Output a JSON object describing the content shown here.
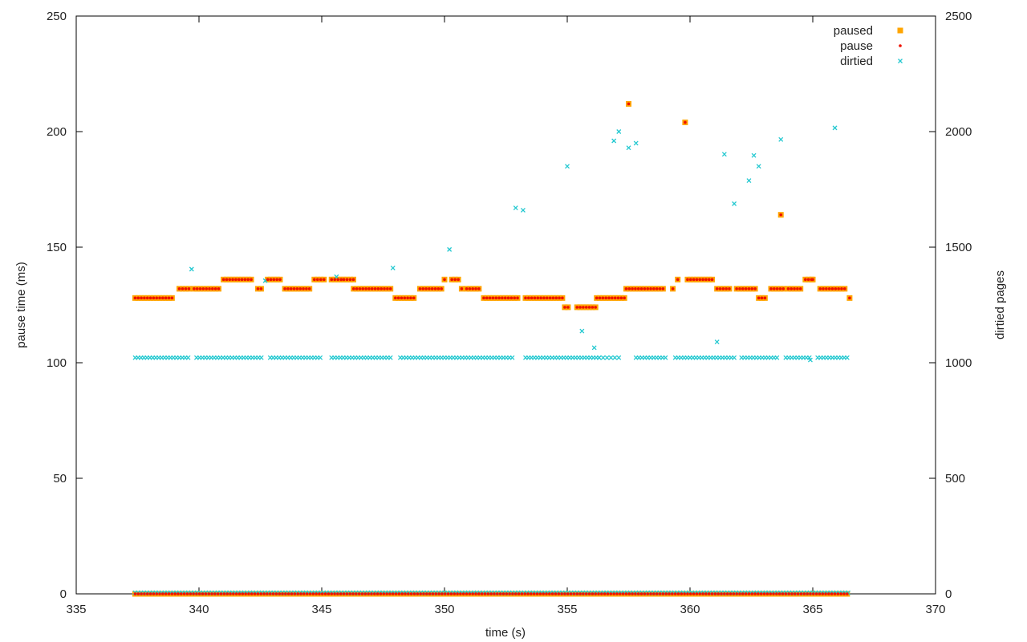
{
  "chart_data": {
    "type": "scatter",
    "title": "",
    "xlabel": "time (s)",
    "ylabel": "pause time (ms)",
    "y2label": "dirtied pages",
    "xlim": [
      335,
      370
    ],
    "ylim": [
      0,
      250
    ],
    "y2lim": [
      0,
      2500
    ],
    "xticks": [
      "335",
      "340",
      "345",
      "350",
      "355",
      "360",
      "365",
      "370"
    ],
    "yticks": [
      "0",
      "50",
      "100",
      "150",
      "200",
      "250"
    ],
    "y2ticks": [
      "0",
      "500",
      "1000",
      "1500",
      "2000",
      "2500"
    ],
    "grid": false,
    "legend_position": "top-right",
    "colors": {
      "paused": "#ffa500",
      "pause": "#ee1100",
      "dirtied": "#22c8d0",
      "axis": "#000000"
    },
    "series": [
      {
        "name": "paused",
        "marker": "square",
        "axis": "y",
        "segments": [
          {
            "x0": 337.4,
            "x1": 339.0,
            "step": 0.125,
            "y": 128
          },
          {
            "x0": 339.2,
            "x1": 339.6,
            "step": 0.13,
            "y": 132
          },
          {
            "x0": 339.8,
            "x1": 340.9,
            "step": 0.125,
            "y": 132
          },
          {
            "x0": 341.0,
            "x1": 342.2,
            "step": 0.125,
            "y": 136
          },
          {
            "x0": 342.4,
            "x1": 342.6,
            "step": 0.13,
            "y": 132
          },
          {
            "x0": 342.8,
            "x1": 343.3,
            "step": 0.125,
            "y": 136
          },
          {
            "x0": 343.5,
            "x1": 344.6,
            "step": 0.125,
            "y": 132
          },
          {
            "x0": 344.7,
            "x1": 345.1,
            "step": 0.13,
            "y": 136
          },
          {
            "x0": 345.4,
            "x1": 345.8,
            "step": 0.13,
            "y": 136
          },
          {
            "x0": 345.9,
            "x1": 346.3,
            "step": 0.13,
            "y": 136
          },
          {
            "x0": 346.3,
            "x1": 347.8,
            "step": 0.125,
            "y": 132
          },
          {
            "x0": 348.0,
            "x1": 348.8,
            "step": 0.125,
            "y": 128
          },
          {
            "x0": 349.0,
            "x1": 349.9,
            "step": 0.125,
            "y": 132
          },
          {
            "x0": 350.0,
            "x1": 350.0,
            "step": 0.13,
            "y": 136
          },
          {
            "x0": 350.3,
            "x1": 350.6,
            "step": 0.13,
            "y": 136
          },
          {
            "x0": 350.7,
            "x1": 350.7,
            "step": 0.13,
            "y": 132
          },
          {
            "x0": 350.9,
            "x1": 351.5,
            "step": 0.125,
            "y": 132
          },
          {
            "x0": 351.6,
            "x1": 353.0,
            "step": 0.125,
            "y": 128
          },
          {
            "x0": 353.3,
            "x1": 354.8,
            "step": 0.125,
            "y": 128
          },
          {
            "x0": 354.9,
            "x1": 355.1,
            "step": 0.13,
            "y": 124
          },
          {
            "x0": 355.4,
            "x1": 356.2,
            "step": 0.125,
            "y": 124
          },
          {
            "x0": 356.2,
            "x1": 357.4,
            "step": 0.125,
            "y": 128
          },
          {
            "x0": 357.4,
            "x1": 358.9,
            "step": 0.125,
            "y": 132
          },
          {
            "x0": 359.3,
            "x1": 359.3,
            "step": 0.13,
            "y": 132
          },
          {
            "x0": 359.5,
            "x1": 359.5,
            "step": 0.13,
            "y": 136
          },
          {
            "x0": 359.9,
            "x1": 361.0,
            "step": 0.125,
            "y": 136
          },
          {
            "x0": 361.1,
            "x1": 361.6,
            "step": 0.125,
            "y": 132
          },
          {
            "x0": 361.9,
            "x1": 362.7,
            "step": 0.125,
            "y": 132
          },
          {
            "x0": 362.8,
            "x1": 363.1,
            "step": 0.125,
            "y": 128
          },
          {
            "x0": 363.3,
            "x1": 363.8,
            "step": 0.125,
            "y": 132
          },
          {
            "x0": 364.0,
            "x1": 364.6,
            "step": 0.125,
            "y": 132
          },
          {
            "x0": 364.7,
            "x1": 365.0,
            "step": 0.125,
            "y": 136
          },
          {
            "x0": 365.0,
            "x1": 365.0,
            "step": 0.13,
            "y": 136
          },
          {
            "x0": 365.3,
            "x1": 366.4,
            "step": 0.125,
            "y": 132
          },
          {
            "x0": 366.5,
            "x1": 366.5,
            "step": 0.13,
            "y": 128
          },
          {
            "x0": 337.4,
            "x1": 366.5,
            "step": 0.125,
            "y": 0
          }
        ],
        "points": [
          [
            357.5,
            212
          ],
          [
            359.8,
            204
          ],
          [
            363.7,
            164
          ]
        ]
      },
      {
        "name": "pause",
        "marker": "circle",
        "axis": "y",
        "same_as": "paused"
      },
      {
        "name": "dirtied",
        "marker": "x",
        "axis": "y2",
        "segments": [
          {
            "x0": 337.4,
            "x1": 339.6,
            "step": 0.12,
            "y": 1022
          },
          {
            "x0": 339.9,
            "x1": 342.6,
            "step": 0.12,
            "y": 1022
          },
          {
            "x0": 342.9,
            "x1": 345.0,
            "step": 0.12,
            "y": 1022
          },
          {
            "x0": 345.4,
            "x1": 347.9,
            "step": 0.12,
            "y": 1022
          },
          {
            "x0": 348.2,
            "x1": 352.8,
            "step": 0.12,
            "y": 1022
          },
          {
            "x0": 353.3,
            "x1": 356.3,
            "step": 0.12,
            "y": 1022
          },
          {
            "x0": 356.3,
            "x1": 357.1,
            "step": 0.16,
            "y": 1022
          },
          {
            "x0": 357.8,
            "x1": 359.1,
            "step": 0.12,
            "y": 1022
          },
          {
            "x0": 359.4,
            "x1": 361.9,
            "step": 0.12,
            "y": 1022
          },
          {
            "x0": 362.1,
            "x1": 363.6,
            "step": 0.12,
            "y": 1022
          },
          {
            "x0": 363.9,
            "x1": 364.9,
            "step": 0.12,
            "y": 1022
          },
          {
            "x0": 365.2,
            "x1": 366.5,
            "step": 0.12,
            "y": 1022
          },
          {
            "x0": 337.4,
            "x1": 366.5,
            "step": 0.12,
            "y": 5
          }
        ],
        "points": [
          [
            339.7,
            1405
          ],
          [
            342.7,
            1355
          ],
          [
            345.6,
            1372
          ],
          [
            347.9,
            1410
          ],
          [
            350.2,
            1490
          ],
          [
            352.9,
            1670
          ],
          [
            353.2,
            1660
          ],
          [
            355.0,
            1850
          ],
          [
            355.6,
            1137
          ],
          [
            356.1,
            1065
          ],
          [
            356.9,
            1960
          ],
          [
            357.1,
            2000
          ],
          [
            357.5,
            1930
          ],
          [
            357.8,
            1950
          ],
          [
            361.1,
            1090
          ],
          [
            361.4,
            1902
          ],
          [
            361.8,
            1688
          ],
          [
            362.4,
            1788
          ],
          [
            362.6,
            1897
          ],
          [
            362.8,
            1850
          ],
          [
            363.7,
            1966
          ],
          [
            364.9,
            1012
          ],
          [
            365.9,
            2016
          ]
        ]
      }
    ]
  }
}
